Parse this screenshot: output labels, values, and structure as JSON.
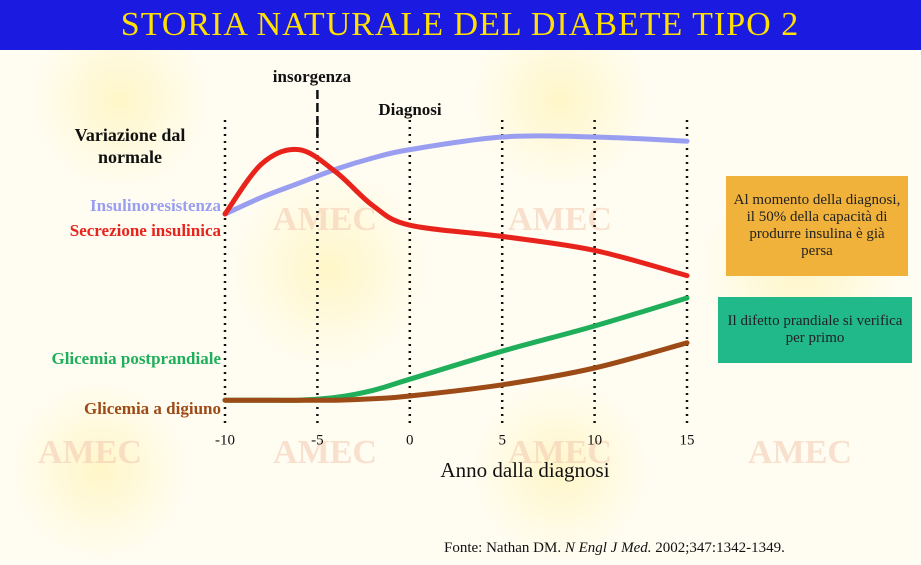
{
  "chart_data": {
    "type": "line",
    "title": "STORIA NATURALE DEL DIABETE TIPO 2",
    "y_label": "Variazione dal normale",
    "x_label": "Anno dalla diagnosi",
    "annotations": [
      "insorgenza",
      "Diagnosi"
    ],
    "watermark": "AMEC",
    "callouts": [
      {
        "text": "Al momento della diagnosi, il 50% della capacità di produrre insulina è già persa",
        "color": "#f0b23a"
      },
      {
        "text": "Il difetto prandiale  si verifica per primo",
        "color": "#21b98a"
      }
    ],
    "source": [
      "Fonte: Nathan DM.",
      "N Engl J Med.",
      "2002;347:1342-1349."
    ],
    "x": [
      -10,
      -8,
      -6,
      -4,
      -2,
      0,
      5,
      10,
      15
    ],
    "xlim": [
      -10,
      15
    ],
    "xticks": [
      -10,
      -5,
      0,
      5,
      10,
      15
    ],
    "ylim": [
      0,
      100
    ],
    "series": [
      {
        "name": "Insulinoresistenza",
        "color": "#9a9ef0",
        "values": [
          70,
          76,
          81,
          86,
          90,
          93,
          97.5,
          97.5,
          96
        ]
      },
      {
        "name": "Secrezione insulinica",
        "color": "#e8231c",
        "values": [
          70,
          88,
          93,
          85,
          73,
          66,
          62,
          57,
          48
        ]
      },
      {
        "name": "Glicemia postprandiale",
        "color": "#1fae5a",
        "values": [
          3.5,
          3.5,
          3.5,
          4.5,
          7,
          11,
          21,
          30,
          40
        ]
      },
      {
        "name": "Glicemia a digiuno",
        "color": "#9c4a16",
        "values": [
          3.5,
          3.5,
          3.5,
          3.5,
          4,
          5,
          9,
          15,
          24
        ]
      }
    ]
  }
}
